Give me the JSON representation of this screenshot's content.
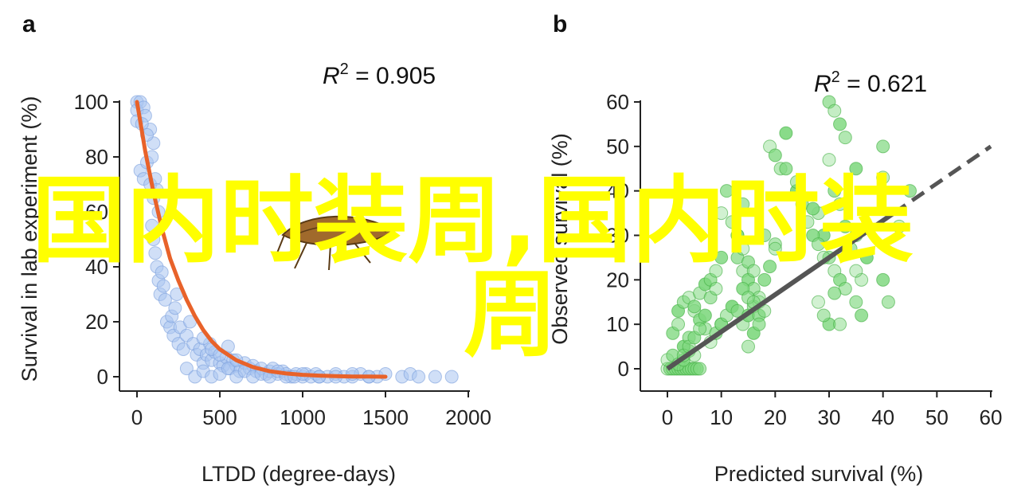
{
  "watermark": {
    "line1": "国内时装周,国内时装",
    "line2": "周",
    "color": "#ffff00"
  },
  "chart_data": [
    {
      "panel_label": "a",
      "type": "scatter",
      "xlabel": "LTDD (degree-days)",
      "ylabel": "Survival in lab experiment (%)",
      "xlim": [
        0,
        2000
      ],
      "ylim": [
        0,
        100
      ],
      "xticks": [
        0,
        500,
        1000,
        1500,
        2000
      ],
      "yticks": [
        0,
        20,
        40,
        60,
        80,
        100
      ],
      "annotation": {
        "prefix": "R",
        "sup": "2",
        "value": " = 0.905"
      },
      "point_color": "#aac4f0",
      "point_stroke": "#7a9fdc",
      "fit_color": "#e8622a",
      "series": [
        {
          "kind": "points",
          "x": [
            0,
            0,
            0,
            20,
            40,
            50,
            80,
            100,
            20,
            40,
            60,
            80,
            100,
            30,
            60,
            90,
            110,
            120,
            130,
            90,
            100,
            110,
            120,
            130,
            140,
            150,
            160,
            170,
            180,
            200,
            210,
            220,
            230,
            240,
            250,
            260,
            280,
            300,
            320,
            340,
            360,
            380,
            400,
            420,
            440,
            450,
            470,
            500,
            520,
            540,
            560,
            580,
            600,
            620,
            650,
            680,
            700,
            720,
            750,
            780,
            800,
            820,
            850,
            880,
            900,
            930,
            960,
            1000,
            1020,
            1050,
            1080,
            1100,
            1150,
            1200,
            1250,
            1300,
            1350,
            1400,
            1450,
            1500,
            1600,
            1650,
            1700,
            1800,
            1900,
            300,
            350,
            400,
            450,
            500,
            550,
            600,
            650,
            700,
            750,
            800,
            850,
            900,
            950,
            1000,
            1100,
            1200,
            1300,
            1400,
            400,
            450,
            500,
            550,
            600
          ],
          "y": [
            100,
            97,
            93,
            100,
            98,
            95,
            90,
            85,
            75,
            72,
            78,
            70,
            65,
            92,
            88,
            80,
            72,
            68,
            60,
            55,
            50,
            45,
            40,
            35,
            30,
            38,
            33,
            28,
            20,
            18,
            22,
            15,
            25,
            30,
            12,
            18,
            10,
            15,
            20,
            12,
            8,
            10,
            5,
            8,
            12,
            6,
            9,
            5,
            4,
            7,
            3,
            6,
            4,
            2,
            5,
            3,
            4,
            2,
            3,
            1,
            2,
            3,
            1,
            2,
            1,
            0,
            1,
            0,
            1,
            0,
            1,
            0,
            0,
            1,
            0,
            0,
            1,
            0,
            0,
            1,
            0,
            1,
            0,
            0,
            0,
            3,
            0,
            2,
            0,
            1,
            3,
            0,
            2,
            0,
            1,
            0,
            2,
            0,
            0,
            1,
            0,
            0,
            1,
            0,
            14,
            10,
            8,
            11,
            6
          ]
        },
        {
          "kind": "fit",
          "x": [
            0,
            50,
            100,
            150,
            200,
            250,
            300,
            350,
            400,
            450,
            500,
            600,
            700,
            800,
            900,
            1000,
            1100,
            1200,
            1300,
            1400,
            1500
          ],
          "y": [
            100,
            82,
            67,
            54,
            43,
            35,
            28,
            22,
            17,
            13,
            10,
            6,
            3.5,
            2,
            1.2,
            0.7,
            0.4,
            0.2,
            0.1,
            0.05,
            0
          ]
        }
      ]
    },
    {
      "panel_label": "b",
      "type": "scatter",
      "xlabel": "Predicted survival (%)",
      "ylabel": "Observed survival (%)",
      "xlim": [
        0,
        60
      ],
      "ylim": [
        0,
        60
      ],
      "xticks": [
        0,
        10,
        20,
        30,
        40,
        50,
        60
      ],
      "yticks": [
        0,
        10,
        20,
        30,
        40,
        50,
        60
      ],
      "annotation": {
        "prefix": "R",
        "sup": "2",
        "value": " = 0.621"
      },
      "point_color": "#7fd87f",
      "point_stroke": "#3fae3f",
      "line_color": "#555555",
      "series": [
        {
          "kind": "points",
          "x": [
            0,
            0.5,
            1,
            1.5,
            2,
            2.5,
            3,
            3.5,
            4,
            4.5,
            5,
            5.5,
            6,
            0,
            1,
            2,
            3,
            4,
            5,
            1,
            2,
            3,
            4,
            5,
            6,
            7,
            8,
            9,
            10,
            2,
            3,
            4,
            5,
            6,
            7,
            8,
            9,
            10,
            3,
            4,
            5,
            6,
            7,
            8,
            9,
            10,
            11,
            12,
            13,
            14,
            15,
            16,
            17,
            13,
            14,
            15,
            16,
            17,
            18,
            13,
            14,
            15,
            16,
            14,
            15,
            16,
            17,
            15,
            16,
            17,
            18,
            19,
            20,
            10,
            11,
            12,
            13,
            14,
            19,
            20,
            21,
            22,
            30,
            31,
            32,
            33,
            30,
            31,
            32,
            35,
            35,
            36,
            36,
            35,
            37,
            40,
            40,
            40,
            41,
            43,
            45,
            28,
            29,
            30,
            31,
            32,
            33,
            24,
            25,
            26,
            27,
            28,
            29,
            22,
            24,
            27,
            18,
            20,
            30,
            29,
            28,
            31,
            32,
            33,
            34,
            35
          ],
          "y": [
            0,
            0,
            0,
            0,
            0,
            0,
            0,
            0,
            0,
            0,
            0,
            0,
            0,
            2,
            3,
            1,
            2,
            4,
            3,
            8,
            10,
            5,
            7,
            13,
            11,
            9,
            6,
            8,
            10,
            13,
            15,
            16,
            14,
            17,
            19,
            20,
            22,
            25,
            3,
            5,
            7,
            9,
            12,
            16,
            18,
            10,
            12,
            14,
            25,
            22,
            20,
            18,
            15,
            13,
            10,
            12,
            14,
            16,
            20,
            30,
            27,
            24,
            22,
            18,
            16,
            15,
            12,
            5,
            8,
            10,
            13,
            23,
            28,
            35,
            40,
            33,
            30,
            37,
            50,
            48,
            45,
            53,
            60,
            58,
            55,
            52,
            47,
            40,
            37,
            45,
            15,
            20,
            12,
            30,
            25,
            50,
            43,
            20,
            15,
            32,
            40,
            35,
            30,
            25,
            22,
            20,
            18,
            40,
            37,
            33,
            30,
            28,
            25,
            45,
            42,
            36,
            30,
            27,
            10,
            12,
            15,
            17,
            10,
            32,
            27,
            22
          ],
          "opacity_variation": true
        },
        {
          "kind": "line",
          "x": [
            0,
            60
          ],
          "y": [
            0,
            50
          ],
          "solid_until_x": 42
        }
      ]
    }
  ]
}
